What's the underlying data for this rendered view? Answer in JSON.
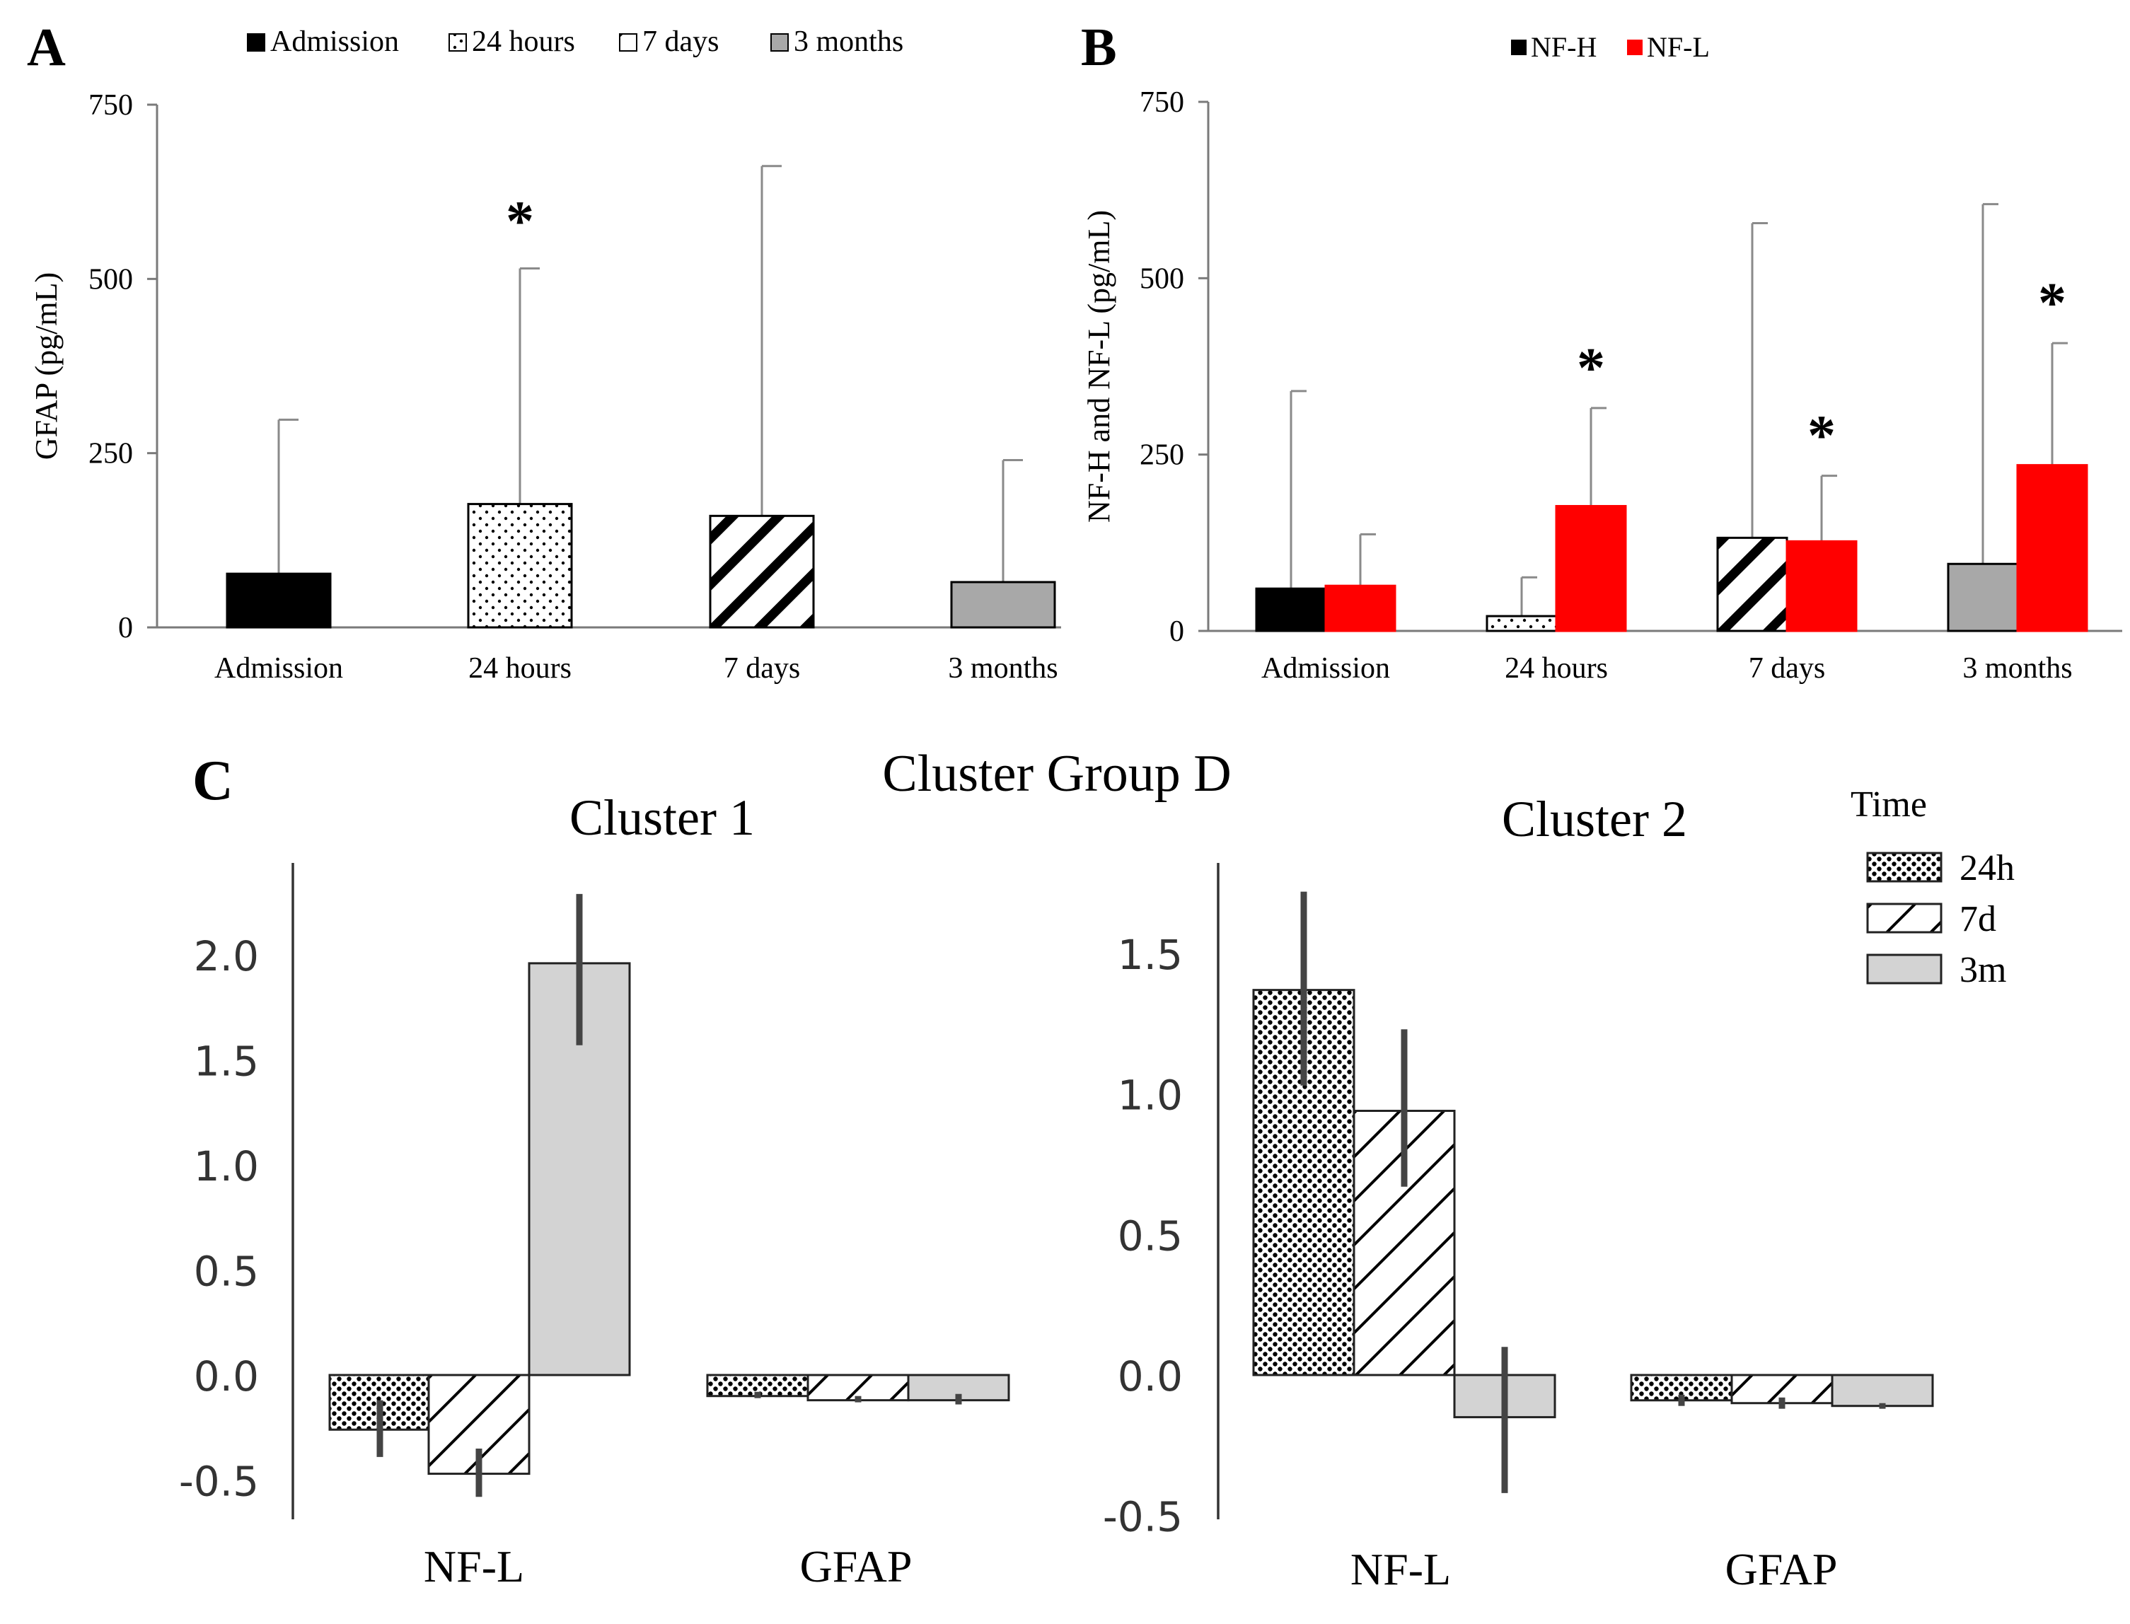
{
  "chart_data": [
    {
      "panel": "A",
      "type": "bar",
      "title": "",
      "ylabel": "GFAP (pg/mL)",
      "xlabel": "",
      "ylim": [
        0,
        750
      ],
      "yticks": [
        0,
        250,
        500,
        750
      ],
      "categories": [
        "Admission",
        "24 hours",
        "7 days",
        "3 months"
      ],
      "values": [
        77,
        177,
        160,
        65
      ],
      "error_upper": [
        298,
        515,
        662,
        240
      ],
      "patterns": [
        "solid-black",
        "dots",
        "diagonal-stripes",
        "solid-gray"
      ],
      "legend": [
        "Admission",
        "24 hours",
        "7 days",
        "3 months"
      ],
      "legend_position": "top",
      "significance": [
        "",
        "*",
        "",
        ""
      ],
      "grid": false
    },
    {
      "panel": "B",
      "type": "bar",
      "title": "",
      "ylabel": "NF-H and NF-L (pg/mL)",
      "xlabel": "",
      "ylim": [
        0,
        750
      ],
      "yticks": [
        0,
        250,
        500,
        750
      ],
      "categories": [
        "Admission",
        "24 hours",
        "7 days",
        "3 months"
      ],
      "series": [
        {
          "name": "NF-H",
          "values": [
            60,
            21,
            132,
            95
          ],
          "error_upper": [
            340,
            76,
            578,
            605
          ],
          "patterns": [
            "solid-black",
            "dots",
            "diagonal-stripes",
            "solid-gray"
          ],
          "significance": [
            "",
            "",
            "",
            ""
          ]
        },
        {
          "name": "NF-L",
          "values": [
            64,
            177,
            127,
            235
          ],
          "error_upper": [
            137,
            316,
            220,
            408
          ],
          "color": "#ff0000",
          "significance": [
            "",
            "*",
            "*",
            "*"
          ]
        }
      ],
      "legend_position": "top",
      "grid": false
    },
    {
      "panel": "C",
      "type": "bar",
      "suptitle": "Cluster Group D",
      "legend_title": "Time",
      "legend": [
        "24h",
        "7d",
        "3m"
      ],
      "legend_position": "top-right",
      "subplots": [
        {
          "title": "Cluster 1",
          "ylim": [
            -0.6,
            2.45
          ],
          "yticks": [
            -0.5,
            0.0,
            0.5,
            1.0,
            1.5,
            2.0
          ],
          "ytick_labels": [
            "-0.5",
            "0.0",
            "0.5",
            "1.0",
            "1.5",
            "2.0"
          ],
          "categories": [
            "NF-L",
            "GFAP"
          ],
          "series": [
            {
              "name": "24h",
              "values": [
                -0.26,
                -0.1
              ],
              "ci": [
                [
                  -0.39,
                  -0.12
                ],
                [
                  -0.11,
                  -0.08
                ]
              ]
            },
            {
              "name": "7d",
              "values": [
                -0.47,
                -0.12
              ],
              "ci": [
                [
                  -0.58,
                  -0.35
                ],
                [
                  -0.13,
                  -0.1
                ]
              ]
            },
            {
              "name": "3m",
              "values": [
                1.96,
                -0.12
              ],
              "ci": [
                [
                  1.57,
                  2.29
                ],
                [
                  -0.14,
                  -0.09
                ]
              ]
            }
          ]
        },
        {
          "title": "Cluster 2",
          "ylim": [
            -0.55,
            1.8
          ],
          "yticks": [
            -0.5,
            0.0,
            0.5,
            1.0,
            1.5
          ],
          "ytick_labels": [
            "-0.5",
            "0.0",
            "0.5",
            "1.0",
            "1.5"
          ],
          "categories": [
            "NF-L",
            "GFAP"
          ],
          "series": [
            {
              "name": "24h",
              "values": [
                1.37,
                -0.09
              ],
              "ci": [
                [
                  1.03,
                  1.72
                ],
                [
                  -0.11,
                  -0.07
                ]
              ]
            },
            {
              "name": "7d",
              "values": [
                0.94,
                -0.1
              ],
              "ci": [
                [
                  0.67,
                  1.23
                ],
                [
                  -0.12,
                  -0.08
                ]
              ]
            },
            {
              "name": "3m",
              "values": [
                -0.15,
                -0.11
              ],
              "ci": [
                [
                  -0.42,
                  0.1
                ],
                [
                  -0.12,
                  -0.1
                ]
              ]
            }
          ]
        }
      ]
    }
  ],
  "panel_labels": [
    "A",
    "B",
    "C"
  ],
  "colors": {
    "black": "#000000",
    "gray_a": "#a8a8a8",
    "gray_c": "#d3d3d3",
    "red": "#ff0000"
  }
}
